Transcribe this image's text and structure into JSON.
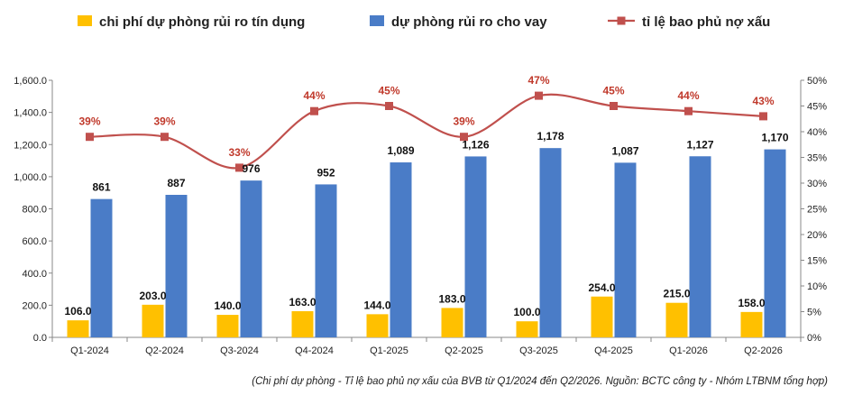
{
  "chart_data": {
    "type": "bar",
    "categories": [
      "Q1-2024",
      "Q2-2024",
      "Q3-2024",
      "Q4-2024",
      "Q1-2025",
      "Q2-2025",
      "Q3-2025",
      "Q4-2025",
      "Q1-2026",
      "Q2-2026"
    ],
    "series": [
      {
        "name": "chi phí dự phòng rủi ro tín dụng",
        "type": "bar",
        "color": "#ffc000",
        "values": [
          106.0,
          203.0,
          140.0,
          163.0,
          144.0,
          183.0,
          100.0,
          254.0,
          215.0,
          158.0
        ],
        "labels": [
          "106.0",
          "203.0",
          "140.0",
          "163.0",
          "144.0",
          "183.0",
          "100.0",
          "254.0",
          "215.0",
          "158.0"
        ]
      },
      {
        "name": "dự phòng rủi ro cho vay",
        "type": "bar",
        "color": "#4a7cc7",
        "values": [
          861,
          887,
          976,
          952,
          1089,
          1126,
          1178,
          1087,
          1127,
          1170
        ],
        "labels": [
          "861",
          "887",
          "976",
          "952",
          "1,089",
          "1,126",
          "1,178",
          "1,087",
          "1,127",
          "1,170"
        ]
      },
      {
        "name": "tỉ lệ bao phủ nợ xấu",
        "type": "line",
        "axis": "right",
        "color": "#c0504d",
        "values": [
          39,
          39,
          33,
          44,
          45,
          39,
          47,
          45,
          44,
          43
        ],
        "labels": [
          "39%",
          "39%",
          "33%",
          "44%",
          "45%",
          "39%",
          "47%",
          "45%",
          "44%",
          "43%"
        ]
      }
    ],
    "left_axis": {
      "ylim": [
        0,
        1600
      ],
      "ticks": [
        "0.0",
        "200.0",
        "400.0",
        "600.0",
        "800.0",
        "1,000.0",
        "1,200.0",
        "1,400.0",
        "1,600.0"
      ]
    },
    "right_axis": {
      "ylim": [
        0,
        50
      ],
      "ticks": [
        "0%",
        "5%",
        "10%",
        "15%",
        "20%",
        "25%",
        "30%",
        "35%",
        "40%",
        "45%",
        "50%"
      ]
    },
    "grid": false,
    "legend": "top",
    "caption": "(Chi phí dự phòng - Tỉ lệ bao phủ nợ xấu của BVB từ Q1/2024 đến Q2/2026. Nguồn: BCTC công ty - Nhóm LTBNM tổng hợp)"
  }
}
